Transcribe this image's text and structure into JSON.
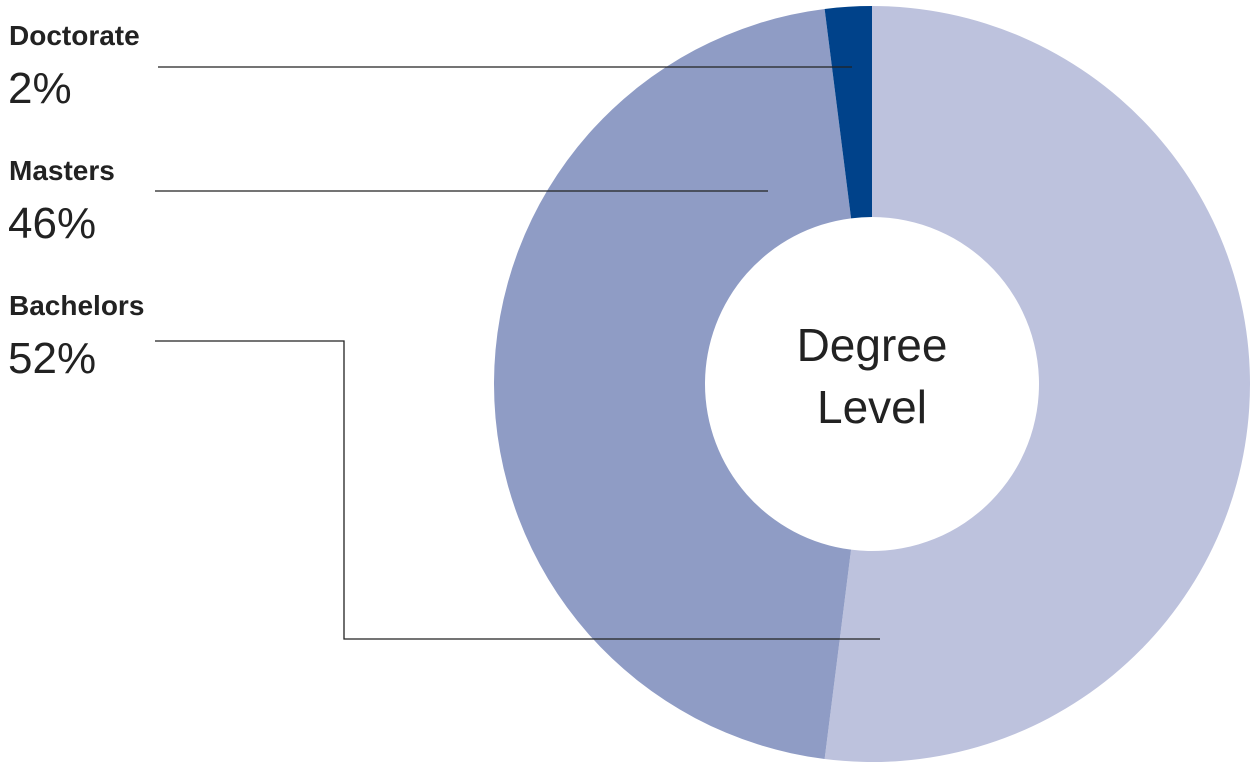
{
  "chart_data": {
    "type": "donut",
    "center_label": "Degree Level",
    "categories": [
      "Bachelors",
      "Masters",
      "Doctorate"
    ],
    "values": [
      52,
      46,
      2
    ],
    "value_labels": [
      "52%",
      "46%",
      "2%"
    ],
    "colors": [
      "#bdc2dd",
      "#8f9cc5",
      "#00428a"
    ]
  }
}
